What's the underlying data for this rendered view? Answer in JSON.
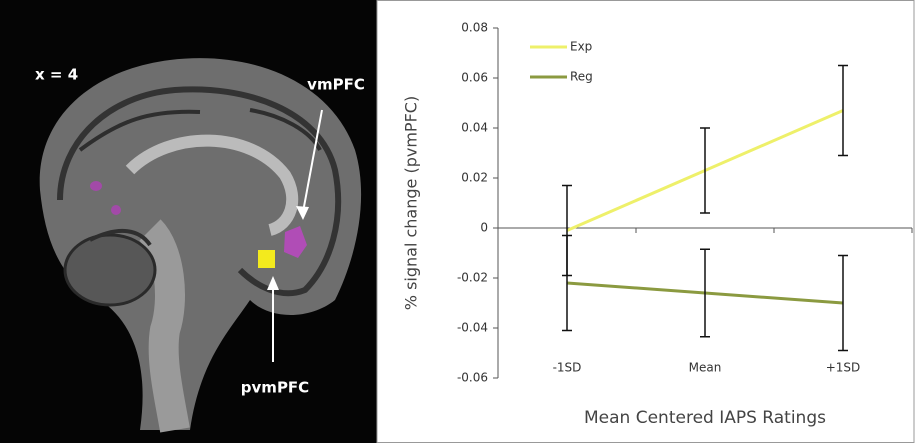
{
  "chart_data": {
    "type": "line",
    "annotations": [
      "x = 4",
      "vmPFC",
      "pvmPFC"
    ],
    "y_label": "% signal change (pvmPFC)",
    "x_label": "Mean Centered IAPS Ratings",
    "categories": [
      "-1SD",
      "Mean",
      "+1SD"
    ],
    "series": [
      {
        "name": "Exp",
        "color": "#eef06a",
        "values": [
          -0.001,
          0.023,
          0.047
        ],
        "errors": [
          0.018,
          0.017,
          0.018
        ]
      },
      {
        "name": "Reg",
        "color": "#8b9a40",
        "values": [
          -0.022,
          -0.026,
          -0.03
        ],
        "errors": [
          0.019,
          0.0175,
          0.019
        ]
      }
    ],
    "ylim": [
      -0.06,
      0.08
    ],
    "yticks": [
      -0.06,
      -0.04,
      -0.02,
      0,
      0.02,
      0.04,
      0.06,
      0.08
    ],
    "legend": "upper left",
    "error_bar_color": "#111111"
  }
}
